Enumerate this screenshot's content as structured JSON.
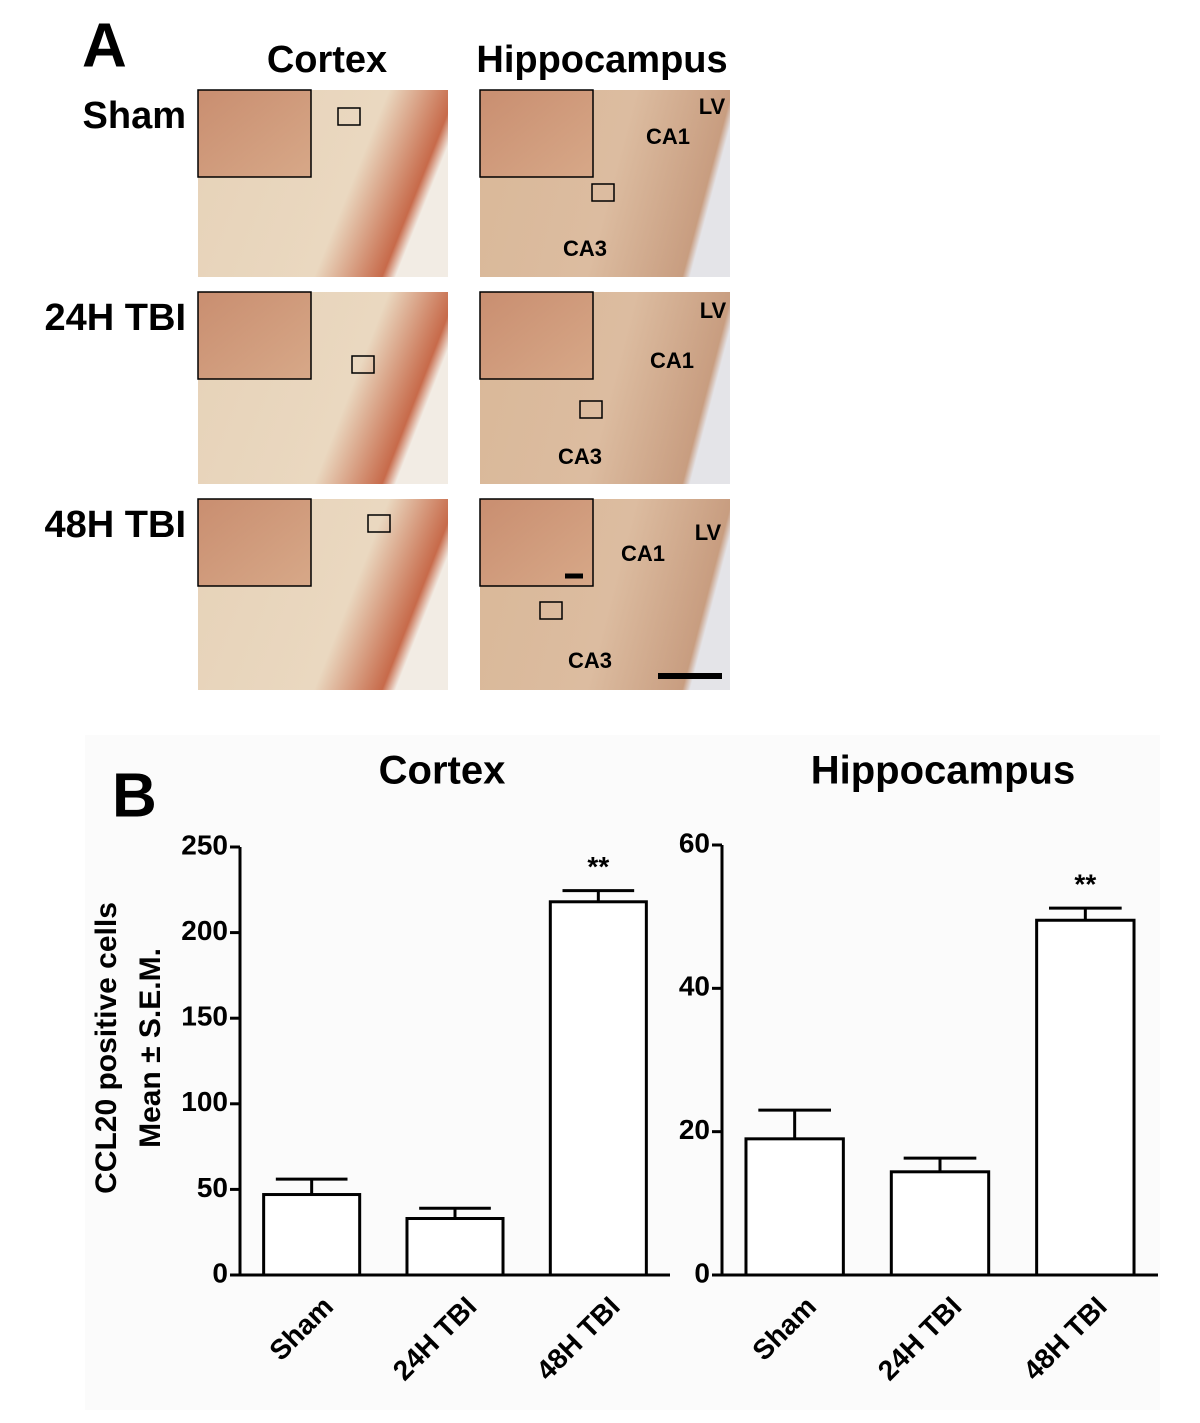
{
  "panel_a": {
    "label": "A",
    "columns": [
      "Cortex",
      "Hippocampus"
    ],
    "rows": [
      "Sham",
      "24H TBI",
      "48H TBI"
    ],
    "hippocampus_regions": [
      [
        "LV",
        "CA1",
        "CA3"
      ],
      [
        "LV",
        "CA1",
        "CA3"
      ],
      [
        "LV",
        "CA1",
        "CA3"
      ]
    ]
  },
  "panel_b_label": "B",
  "chart_data": [
    {
      "type": "bar",
      "title": "Cortex",
      "ylabel": [
        "CCL20 positive cells",
        "Mean ± S.E.M."
      ],
      "categories": [
        "Sham",
        "24H TBI",
        "48H TBI"
      ],
      "values": [
        47,
        33,
        218
      ],
      "errors": [
        9,
        6,
        6.5
      ],
      "significance": [
        null,
        null,
        "**"
      ],
      "color": "#ffffff",
      "ylim": [
        0,
        250
      ],
      "yticks": [
        0,
        50,
        100,
        150,
        200,
        250
      ],
      "grid": false
    },
    {
      "type": "bar",
      "title": "Hippocampus",
      "categories": [
        "Sham",
        "24H TBI",
        "48H TBI"
      ],
      "values": [
        19,
        14.4,
        49.5
      ],
      "errors": [
        4,
        1.9,
        1.7
      ],
      "significance": [
        null,
        null,
        "**"
      ],
      "color": "#ffffff",
      "ylim": [
        0,
        60
      ],
      "yticks": [
        0,
        20,
        40,
        60
      ],
      "grid": false
    }
  ]
}
